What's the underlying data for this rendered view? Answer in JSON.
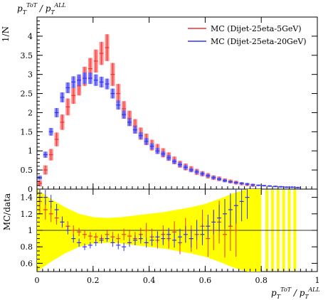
{
  "chart_data": [
    {
      "type": "line",
      "panel": "main",
      "title": "p_T^{ToT} / p_T^{ALL}",
      "title_main": "p",
      "title_sub": "T",
      "title_sup": "ToT",
      "title_slash": " / ",
      "title_main2": "p",
      "title_sub2": "T",
      "title_sup2": "ALL",
      "ylabel": "1/N",
      "xlim": [
        0,
        1
      ],
      "ylim": [
        0,
        4.5
      ],
      "yticks": [
        "0.5",
        "1",
        "1.5",
        "2",
        "2.5",
        "3",
        "3.5",
        "4"
      ],
      "ytick_values": [
        0.5,
        1,
        1.5,
        2,
        2.5,
        3,
        3.5,
        4
      ],
      "ytick_zero": "0",
      "legend_position": "top-right",
      "series": [
        {
          "name": "MC (Dijet-25eta-5GeV)",
          "color": "#ee3333",
          "band_color": "#ff7777",
          "x": [
            0.01,
            0.03,
            0.05,
            0.07,
            0.09,
            0.11,
            0.13,
            0.15,
            0.17,
            0.19,
            0.21,
            0.23,
            0.25,
            0.27,
            0.29,
            0.31,
            0.33,
            0.35,
            0.37,
            0.39,
            0.41,
            0.43,
            0.45,
            0.47,
            0.49,
            0.51,
            0.53,
            0.55,
            0.57,
            0.59,
            0.61,
            0.63,
            0.65,
            0.67,
            0.69,
            0.71,
            0.73,
            0.75,
            0.77
          ],
          "y": [
            0.15,
            0.5,
            0.9,
            1.3,
            1.75,
            2.15,
            2.45,
            2.7,
            2.95,
            3.15,
            3.35,
            3.55,
            3.7,
            3.0,
            2.5,
            2.1,
            1.85,
            1.65,
            1.45,
            1.3,
            1.15,
            1.05,
            0.95,
            0.85,
            0.75,
            0.65,
            0.58,
            0.52,
            0.45,
            0.4,
            0.35,
            0.3,
            0.27,
            0.23,
            0.2,
            0.17,
            0.14,
            0.12,
            0.1
          ],
          "err": [
            0.08,
            0.12,
            0.15,
            0.18,
            0.2,
            0.22,
            0.22,
            0.25,
            0.25,
            0.28,
            0.3,
            0.3,
            0.35,
            0.3,
            0.25,
            0.2,
            0.2,
            0.18,
            0.16,
            0.15,
            0.14,
            0.13,
            0.12,
            0.11,
            0.1,
            0.09,
            0.09,
            0.08,
            0.08,
            0.07,
            0.07,
            0.06,
            0.06,
            0.05,
            0.05,
            0.05,
            0.04,
            0.04,
            0.04
          ]
        },
        {
          "name": "MC (Dijet-25eta-20GeV)",
          "color": "#3333ee",
          "band_color": "#7777ff",
          "x": [
            0.01,
            0.03,
            0.05,
            0.07,
            0.09,
            0.11,
            0.13,
            0.15,
            0.17,
            0.19,
            0.21,
            0.23,
            0.25,
            0.27,
            0.29,
            0.31,
            0.33,
            0.35,
            0.37,
            0.39,
            0.41,
            0.43,
            0.45,
            0.47,
            0.49,
            0.51,
            0.53,
            0.55,
            0.57,
            0.59,
            0.61,
            0.63,
            0.65,
            0.67,
            0.69,
            0.71,
            0.73,
            0.75,
            0.77,
            0.79,
            0.81,
            0.83,
            0.85,
            0.87,
            0.89,
            0.91,
            0.93
          ],
          "y": [
            0.3,
            0.9,
            1.5,
            2.0,
            2.4,
            2.65,
            2.8,
            2.85,
            2.9,
            2.9,
            2.85,
            2.8,
            2.75,
            2.5,
            2.2,
            1.95,
            1.75,
            1.55,
            1.4,
            1.25,
            1.12,
            1.0,
            0.92,
            0.82,
            0.72,
            0.64,
            0.57,
            0.5,
            0.45,
            0.4,
            0.35,
            0.3,
            0.26,
            0.22,
            0.19,
            0.17,
            0.15,
            0.13,
            0.11,
            0.1,
            0.09,
            0.08,
            0.07,
            0.06,
            0.05,
            0.05,
            0.04
          ],
          "err": [
            0.05,
            0.08,
            0.1,
            0.12,
            0.13,
            0.14,
            0.15,
            0.15,
            0.15,
            0.15,
            0.15,
            0.14,
            0.14,
            0.13,
            0.12,
            0.11,
            0.1,
            0.1,
            0.09,
            0.09,
            0.08,
            0.08,
            0.07,
            0.07,
            0.06,
            0.06,
            0.06,
            0.05,
            0.05,
            0.05,
            0.04,
            0.04,
            0.04,
            0.04,
            0.03,
            0.03,
            0.03,
            0.03,
            0.03,
            0.02,
            0.02,
            0.02,
            0.02,
            0.02,
            0.02,
            0.02,
            0.02
          ]
        }
      ]
    },
    {
      "type": "line",
      "panel": "ratio",
      "ylabel": "MC/data",
      "xlabel": "p_T^{ToT} / p_T^{ALL}",
      "xlabel_main": "p",
      "xlabel_sub": "T",
      "xlabel_sup": "ToT",
      "xlabel_slash": " / ",
      "xlabel_main2": "p",
      "xlabel_sub2": "T",
      "xlabel_sup2": "ALL",
      "xlim": [
        0,
        1
      ],
      "ylim": [
        0.5,
        1.5
      ],
      "xticks": [
        "0",
        "0.2",
        "0.4",
        "0.6",
        "0.8",
        "1"
      ],
      "xtick_values": [
        0,
        0.2,
        0.4,
        0.6,
        0.8,
        1.0
      ],
      "yticks": [
        "0.6",
        "0.8",
        "1",
        "1.2",
        "1.4"
      ],
      "ytick_values": [
        0.6,
        0.8,
        1.0,
        1.2,
        1.4
      ],
      "reference_line": 1.0,
      "reference_band_color": "#ffff00",
      "band": {
        "x": [
          0.0,
          0.05,
          0.1,
          0.15,
          0.2,
          0.25,
          0.3,
          0.35,
          0.4,
          0.45,
          0.5,
          0.55,
          0.6,
          0.65,
          0.7,
          0.75,
          0.8
        ],
        "lo": [
          0.5,
          0.62,
          0.72,
          0.8,
          0.84,
          0.85,
          0.84,
          0.82,
          0.8,
          0.78,
          0.75,
          0.72,
          0.68,
          0.62,
          0.55,
          0.5,
          0.5
        ],
        "hi": [
          1.5,
          1.38,
          1.28,
          1.2,
          1.16,
          1.15,
          1.16,
          1.18,
          1.2,
          1.22,
          1.25,
          1.28,
          1.32,
          1.38,
          1.45,
          1.5,
          1.5
        ]
      },
      "series": [
        {
          "name": "MC (Dijet-25eta-5GeV)",
          "color": "#ee3333",
          "x": [
            0.01,
            0.03,
            0.05,
            0.07,
            0.09,
            0.11,
            0.13,
            0.15,
            0.17,
            0.19,
            0.21,
            0.23,
            0.25,
            0.27,
            0.29,
            0.31,
            0.33,
            0.35,
            0.37,
            0.39,
            0.41,
            0.43,
            0.45,
            0.47,
            0.49,
            0.51,
            0.53,
            0.55,
            0.57,
            0.59,
            0.61,
            0.63,
            0.65,
            0.67,
            0.69,
            0.71
          ],
          "y": [
            1.35,
            1.25,
            1.2,
            1.15,
            1.1,
            1.05,
            1.0,
            0.98,
            0.95,
            0.93,
            0.92,
            0.9,
            0.95,
            0.92,
            0.9,
            0.95,
            0.93,
            0.9,
            0.95,
            1.0,
            0.92,
            0.88,
            0.95,
            0.9,
            0.98,
            0.85,
            1.0,
            0.9,
            0.95,
            1.05,
            0.9,
            1.0,
            1.1,
            0.95,
            1.05,
            1.0
          ],
          "err": [
            0.15,
            0.12,
            0.1,
            0.08,
            0.07,
            0.06,
            0.06,
            0.05,
            0.05,
            0.05,
            0.05,
            0.05,
            0.06,
            0.06,
            0.06,
            0.07,
            0.07,
            0.08,
            0.08,
            0.09,
            0.1,
            0.1,
            0.11,
            0.12,
            0.13,
            0.14,
            0.15,
            0.16,
            0.18,
            0.2,
            0.22,
            0.24,
            0.26,
            0.28,
            0.3,
            0.32
          ]
        },
        {
          "name": "MC (Dijet-25eta-20GeV)",
          "color": "#3333ee",
          "x": [
            0.01,
            0.03,
            0.05,
            0.07,
            0.09,
            0.11,
            0.13,
            0.15,
            0.17,
            0.19,
            0.21,
            0.23,
            0.25,
            0.27,
            0.29,
            0.31,
            0.33,
            0.35,
            0.37,
            0.39,
            0.41,
            0.43,
            0.45,
            0.47,
            0.49,
            0.51,
            0.53,
            0.55,
            0.57,
            0.59,
            0.61,
            0.63,
            0.65,
            0.67,
            0.69,
            0.71,
            0.73,
            0.75
          ],
          "y": [
            1.45,
            1.4,
            1.35,
            1.25,
            1.1,
            1.0,
            0.9,
            0.85,
            0.8,
            0.82,
            0.85,
            0.88,
            0.9,
            0.85,
            0.82,
            0.8,
            0.85,
            0.88,
            0.9,
            0.85,
            0.88,
            0.92,
            0.9,
            0.95,
            0.88,
            0.92,
            0.95,
            0.9,
            1.0,
            0.95,
            1.05,
            1.1,
            1.15,
            1.2,
            1.25,
            1.3,
            1.35,
            1.4
          ],
          "err": [
            0.1,
            0.09,
            0.08,
            0.07,
            0.06,
            0.05,
            0.05,
            0.05,
            0.04,
            0.04,
            0.04,
            0.04,
            0.04,
            0.05,
            0.05,
            0.05,
            0.05,
            0.06,
            0.06,
            0.06,
            0.07,
            0.07,
            0.08,
            0.08,
            0.09,
            0.1,
            0.1,
            0.11,
            0.12,
            0.13,
            0.14,
            0.15,
            0.16,
            0.18,
            0.2,
            0.22,
            0.24,
            0.26
          ]
        }
      ]
    }
  ]
}
